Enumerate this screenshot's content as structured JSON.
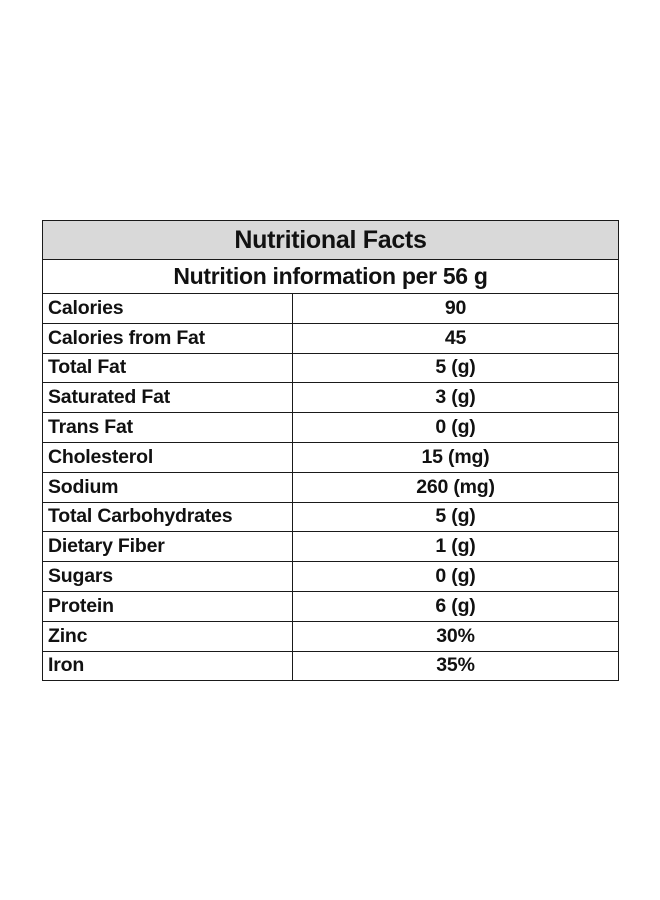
{
  "table": {
    "title": "Nutritional Facts",
    "subtitle": "Nutrition information per 56 g",
    "rows": [
      {
        "name": "Calories",
        "value": "90"
      },
      {
        "name": "Calories from Fat",
        "value": "45"
      },
      {
        "name": "Total Fat",
        "value": "5 (g)"
      },
      {
        "name": "Saturated Fat",
        "value": "3 (g)"
      },
      {
        "name": "Trans Fat",
        "value": "0 (g)"
      },
      {
        "name": "Cholesterol",
        "value": "15 (mg)"
      },
      {
        "name": "Sodium",
        "value": "260 (mg)"
      },
      {
        "name": "Total Carbohydrates",
        "value": "5 (g)"
      },
      {
        "name": "Dietary Fiber",
        "value": "1 (g)"
      },
      {
        "name": "Sugars",
        "value": "0 (g)"
      },
      {
        "name": "Protein",
        "value": "6 (g)"
      },
      {
        "name": "Zinc",
        "value": "30%"
      },
      {
        "name": "Iron",
        "value": "35%"
      }
    ],
    "colors": {
      "header_background": "#d9d9d9",
      "border": "#1a1a1a",
      "text": "#111111"
    }
  }
}
